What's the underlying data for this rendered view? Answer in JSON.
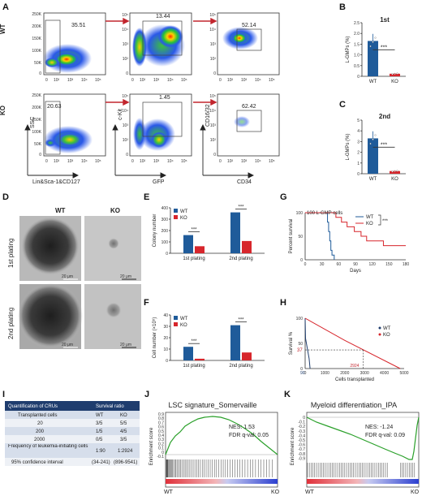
{
  "panel_labels": [
    "A",
    "B",
    "C",
    "D",
    "E",
    "F",
    "G",
    "H",
    "I",
    "J",
    "K"
  ],
  "flow": {
    "row_labels": [
      "WT",
      "KO"
    ],
    "gate_values": {
      "wt": [
        "35.51",
        "13.44",
        "52.14"
      ],
      "ko": [
        "20.63",
        "1.45",
        "62.42"
      ]
    },
    "axis": {
      "y1": "SSC",
      "x1": "Lin&Sca-1&CD127",
      "y2": "c-Kit",
      "x2": "GFP",
      "y3": "CD16/32",
      "x3": "CD34",
      "ssc_ticks": [
        "250K",
        "200K",
        "150K",
        "100K",
        "50K",
        "0"
      ],
      "log_ticks": [
        "10⁵",
        "10⁴",
        "10³",
        "10²",
        "0"
      ],
      "x_ticks": [
        "0",
        "10²",
        "10³",
        "10⁴",
        "10⁵"
      ]
    }
  },
  "colony": {
    "col_labels": [
      "WT",
      "KO"
    ],
    "row_labels": [
      "1st plating",
      "2nd plating"
    ],
    "scale_bar": "20 μm"
  },
  "cru_table": {
    "header": [
      "Quantification of CRUs",
      "Survival ratio"
    ],
    "rows": [
      [
        "Transplanted cells",
        "WT",
        "KO"
      ],
      [
        "20",
        "3/5",
        "5/5"
      ],
      [
        "200",
        "1/5",
        "4/5"
      ],
      [
        "2000",
        "0/5",
        "3/5"
      ],
      [
        "Frequency of leukemia-initiating cells",
        "1:90",
        "1:2924"
      ],
      [
        "95% confidence interval",
        "(34-241)",
        "(896-9541)"
      ]
    ]
  },
  "gsea": {
    "j_title": "LSC signature_Somervaille",
    "j_nes": "NES: 1.53",
    "j_fdr": "FDR q-val: 0.05",
    "k_title": "Myeloid differentiation_IPA",
    "k_nes": "NES: -1.24",
    "k_fdr": "FDR q-val: 0.09",
    "ylabel": "Enrichment score",
    "left": "WT",
    "right": "KO"
  },
  "chart_data": [
    {
      "panel": "B",
      "type": "bar",
      "title": "1st",
      "categories": [
        "WT",
        "KO"
      ],
      "values": [
        1.65,
        0.12
      ],
      "ylabel": "L-GMPs (%)",
      "ylim": [
        0,
        2.5
      ],
      "yticks": [
        "0",
        "0.5",
        "1.0",
        "1.5",
        "2.0",
        "2.5"
      ],
      "significance": "***",
      "colors": [
        "#1f5b9a",
        "#d7262c"
      ]
    },
    {
      "panel": "C",
      "type": "bar",
      "title": "2nd",
      "categories": [
        "WT",
        "KO"
      ],
      "values": [
        3.3,
        0.25
      ],
      "ylabel": "L-GMPs (%)",
      "ylim": [
        0,
        5
      ],
      "yticks": [
        "0",
        "1",
        "2",
        "3",
        "4",
        "5"
      ],
      "significance": "***",
      "colors": [
        "#1f5b9a",
        "#d7262c"
      ]
    },
    {
      "panel": "E",
      "type": "bar",
      "categories": [
        "1st plating",
        "2nd plating"
      ],
      "series": [
        {
          "name": "WT",
          "values": [
            160,
            360
          ]
        },
        {
          "name": "KO",
          "values": [
            62,
            108
          ]
        }
      ],
      "ylabel": "Colony number",
      "ylim": [
        0,
        400
      ],
      "yticks": [
        "0",
        "100",
        "200",
        "300",
        "400"
      ],
      "significance": [
        "***",
        "***"
      ],
      "legend": "top-left"
    },
    {
      "panel": "F",
      "type": "bar",
      "categories": [
        "1st plating",
        "2nd plating"
      ],
      "series": [
        {
          "name": "WT",
          "values": [
            12,
            31
          ]
        },
        {
          "name": "KO",
          "values": [
            1.5,
            7
          ]
        }
      ],
      "ylabel": "Cell number (×10⁵)",
      "ylim": [
        0,
        40
      ],
      "yticks": [
        "0",
        "10",
        "20",
        "30",
        "40"
      ],
      "significance": [
        "***",
        "***"
      ],
      "legend": "top-left"
    },
    {
      "panel": "G",
      "type": "line",
      "annotation": "100 L-GMP cells",
      "series": [
        {
          "name": "WT",
          "x": [
            0,
            38,
            40,
            42,
            44,
            46,
            48,
            52
          ],
          "y": [
            100,
            100,
            80,
            60,
            40,
            20,
            10,
            0
          ]
        },
        {
          "name": "KO",
          "x": [
            0,
            50,
            55,
            65,
            75,
            88,
            100,
            110,
            120,
            140,
            160,
            170,
            180
          ],
          "y": [
            100,
            100,
            90,
            80,
            70,
            60,
            50,
            40,
            40,
            30,
            30,
            30,
            30
          ]
        }
      ],
      "xlabel": "Days",
      "ylabel": "Percent survival",
      "xlim": [
        0,
        180
      ],
      "ylim": [
        0,
        100
      ],
      "xticks": [
        "0",
        "30",
        "60",
        "90",
        "120",
        "150",
        "180"
      ],
      "yticks": [
        "0",
        "50",
        "100"
      ],
      "significance": "***",
      "legend": "top-right"
    },
    {
      "panel": "H",
      "type": "line",
      "series": [
        {
          "name": "WT",
          "x": [
            0,
            20,
            200,
            250
          ],
          "y": [
            100,
            60,
            20,
            0
          ]
        },
        {
          "name": "KO",
          "x": [
            0,
            2000,
            4800
          ],
          "y": [
            100,
            56,
            0
          ]
        }
      ],
      "xlabel": "Cells transplanted",
      "ylabel": "Survival %",
      "xlim": [
        0,
        5000
      ],
      "ylim": [
        0,
        100
      ],
      "xticks": [
        "0",
        "1000",
        "2000",
        "3000",
        "4000",
        "5000"
      ],
      "yticks": [
        "0",
        "50",
        "100"
      ],
      "annotations": [
        "37",
        "90",
        "2924"
      ],
      "legend": "right"
    }
  ]
}
